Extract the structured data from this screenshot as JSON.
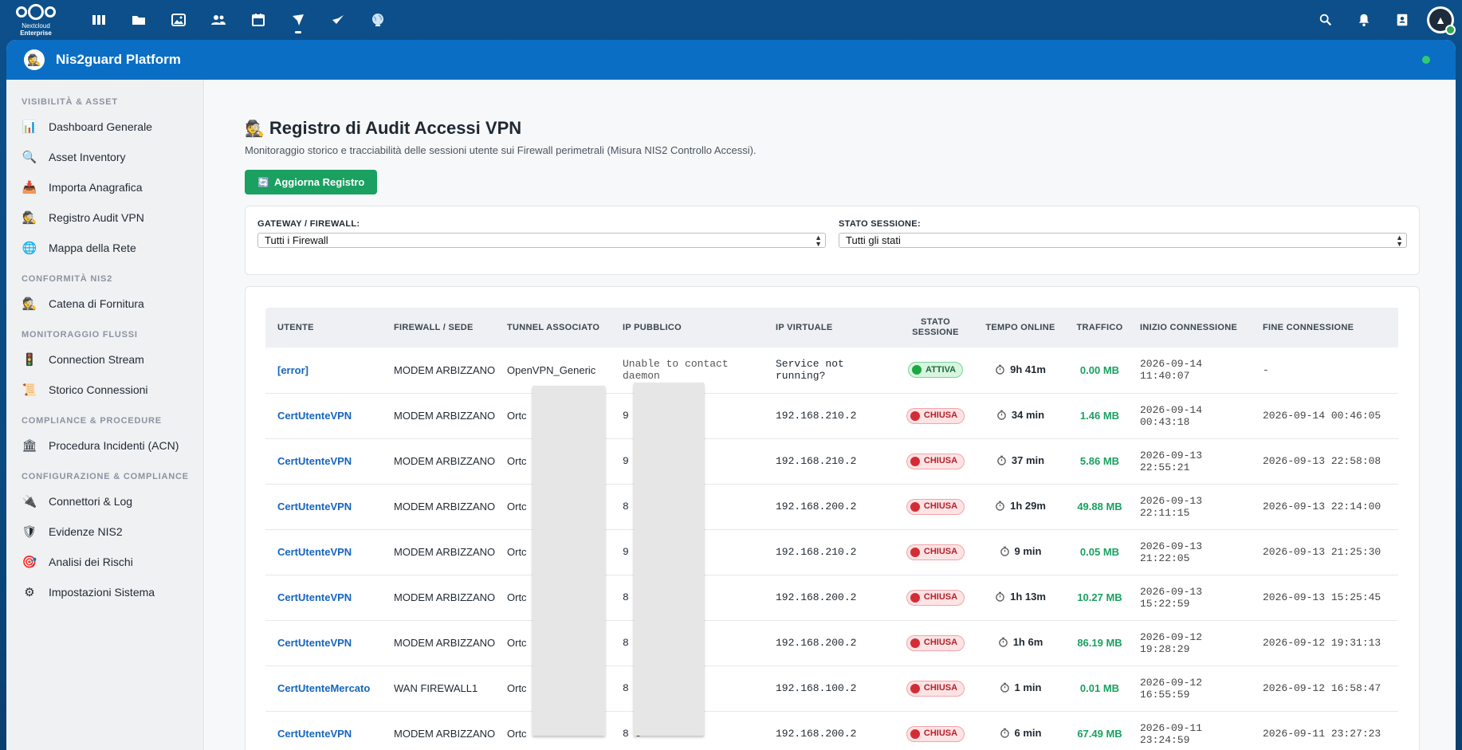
{
  "topbar": {
    "logo_line1": "Nextcloud",
    "logo_line2": "Enterprise",
    "apps": [
      "dashboard-icon",
      "files-icon",
      "photos-icon",
      "contacts-icon",
      "calendar-icon",
      "nis2guard-icon",
      "nis2guard-secondary-icon",
      "globe-icon"
    ],
    "active_app_index": 5
  },
  "app": {
    "title": "Nis2guard Platform",
    "status_color": "#2ecc71"
  },
  "sidebar": {
    "sections": [
      {
        "title": "VISIBILITÀ & ASSET",
        "items": [
          {
            "label": "Dashboard Generale",
            "icon": "📊"
          },
          {
            "label": "Asset Inventory",
            "icon": "🔍"
          },
          {
            "label": "Importa Anagrafica",
            "icon": "📥"
          },
          {
            "label": "Registro Audit VPN",
            "icon": "🕵"
          },
          {
            "label": "Mappa della Rete",
            "icon": "🌐"
          }
        ]
      },
      {
        "title": "CONFORMITÀ NIS2",
        "items": [
          {
            "label": "Catena di Fornitura",
            "icon": "🕵"
          }
        ]
      },
      {
        "title": "MONITORAGGIO FLUSSI",
        "items": [
          {
            "label": "Connection Stream",
            "icon": "🚦"
          },
          {
            "label": "Storico Connessioni",
            "icon": "📜"
          }
        ]
      },
      {
        "title": "COMPLIANCE & PROCEDURE",
        "items": [
          {
            "label": "Procedura Incidenti (ACN)",
            "icon": "🏛"
          }
        ]
      },
      {
        "title": "CONFIGURAZIONE & COMPLIANCE",
        "items": [
          {
            "label": "Connettori & Log",
            "icon": "🔌"
          },
          {
            "label": "Evidenze NIS2",
            "icon": "🛡"
          },
          {
            "label": "Analisi dei Rischi",
            "icon": "🎯"
          },
          {
            "label": "Impostazioni Sistema",
            "icon": "⚙"
          }
        ]
      }
    ]
  },
  "main": {
    "title_icon": "🕵",
    "title": "Registro di Audit Accessi VPN",
    "subtitle": "Monitoraggio storico e tracciabilità delle sessioni utente sui Firewall perimetrali (Misura NIS2 Controllo Accessi).",
    "refresh_icon": "🔄",
    "refresh_label": "Aggiorna Registro",
    "filters": {
      "gateway_label": "GATEWAY / FIREWALL:",
      "gateway_value": "Tutti i Firewall",
      "status_label": "STATO SESSIONE:",
      "status_value": "Tutti gli stati"
    },
    "table": {
      "headers": [
        "UTENTE",
        "FIREWALL / SEDE",
        "TUNNEL ASSOCIATO",
        "IP PUBBLICO",
        "IP VIRTUALE",
        "STATO SESSIONE",
        "TEMPO ONLINE",
        "TRAFFICO",
        "INIZIO CONNESSIONE",
        "FINE CONNESSIONE"
      ],
      "rows": [
        {
          "user": "[error]",
          "firewall": "MODEM ARBIZZANO",
          "tunnel": "OpenVPN_Generic",
          "ip_public": "Unable to contact daemon",
          "ip_virtual": "Service not running?",
          "status": "ATTIVA",
          "status_type": "active",
          "time": "9h 41m",
          "traffic": "0.00 MB",
          "start": "2026-09-14 11:40:07",
          "end": "-"
        },
        {
          "user": "CertUtenteVPN",
          "firewall": "MODEM ARBIZZANO",
          "tunnel": "Ortc",
          "ip_public": "9",
          "ip_virtual": "192.168.210.2",
          "status": "CHIUSA",
          "status_type": "closed",
          "time": "34 min",
          "traffic": "1.46 MB",
          "start": "2026-09-14 00:43:18",
          "end": "2026-09-14 00:46:05"
        },
        {
          "user": "CertUtenteVPN",
          "firewall": "MODEM ARBIZZANO",
          "tunnel": "Ortc",
          "ip_public": "9",
          "ip_virtual": "192.168.210.2",
          "status": "CHIUSA",
          "status_type": "closed",
          "time": "37 min",
          "traffic": "5.86 MB",
          "start": "2026-09-13 22:55:21",
          "end": "2026-09-13 22:58:08"
        },
        {
          "user": "CertUtenteVPN",
          "firewall": "MODEM ARBIZZANO",
          "tunnel": "Ortc",
          "ip_public": "8 6",
          "ip_virtual": "192.168.200.2",
          "status": "CHIUSA",
          "status_type": "closed",
          "time": "1h 29m",
          "traffic": "49.88 MB",
          "start": "2026-09-13 22:11:15",
          "end": "2026-09-13 22:14:00"
        },
        {
          "user": "CertUtenteVPN",
          "firewall": "MODEM ARBIZZANO",
          "tunnel": "Ortc",
          "ip_public": "9",
          "ip_virtual": "192.168.210.2",
          "status": "CHIUSA",
          "status_type": "closed",
          "time": "9 min",
          "traffic": "0.05 MB",
          "start": "2026-09-13 21:22:05",
          "end": "2026-09-13 21:25:30"
        },
        {
          "user": "CertUtenteVPN",
          "firewall": "MODEM ARBIZZANO",
          "tunnel": "Ortc",
          "ip_public": "8 6",
          "ip_virtual": "192.168.200.2",
          "status": "CHIUSA",
          "status_type": "closed",
          "time": "1h 13m",
          "traffic": "10.27 MB",
          "start": "2026-09-13 15:22:59",
          "end": "2026-09-13 15:25:45"
        },
        {
          "user": "CertUtenteVPN",
          "firewall": "MODEM ARBIZZANO",
          "tunnel": "Ortc",
          "ip_public": "8 6",
          "ip_virtual": "192.168.200.2",
          "status": "CHIUSA",
          "status_type": "closed",
          "time": "1h 6m",
          "traffic": "86.19 MB",
          "start": "2026-09-12 19:28:29",
          "end": "2026-09-12 19:31:13"
        },
        {
          "user": "CertUtenteMercato",
          "firewall": "WAN FIREWALL1",
          "tunnel": "Ortc",
          "ip_public": "8 6",
          "ip_virtual": "192.168.100.2",
          "status": "CHIUSA",
          "status_type": "closed",
          "time": "1 min",
          "traffic": "0.01 MB",
          "start": "2026-09-12 16:55:59",
          "end": "2026-09-12 16:58:47"
        },
        {
          "user": "CertUtenteVPN",
          "firewall": "MODEM ARBIZZANO",
          "tunnel": "Ortc",
          "ip_public": "8 6",
          "ip_virtual": "192.168.200.2",
          "status": "CHIUSA",
          "status_type": "closed",
          "time": "6 min",
          "traffic": "67.49 MB",
          "start": "2026-09-11 23:24:59",
          "end": "2026-09-11 23:27:23"
        }
      ]
    }
  }
}
